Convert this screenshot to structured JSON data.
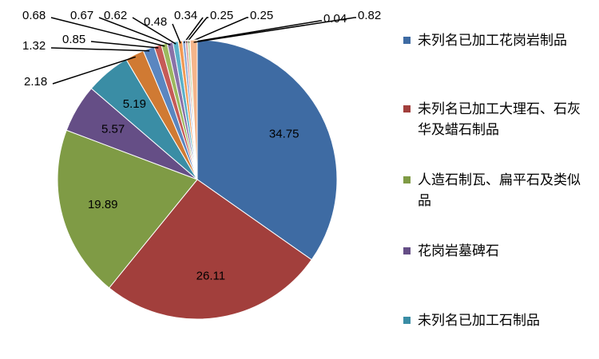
{
  "chart_data": {
    "type": "pie",
    "categories": [
      "未列名已加工花岗岩制品",
      "未列名已加工大理石、石灰华及蜡石制品",
      "人造石制瓦、扁平石及类似品",
      "花岗岩墓碑石",
      "未列名已加工石制品",
      null,
      null,
      null,
      null,
      null,
      null,
      null,
      null,
      null,
      null,
      null,
      null
    ],
    "values": [
      34.75,
      26.11,
      19.89,
      5.57,
      5.19,
      2.18,
      1.32,
      0.85,
      0.68,
      0.67,
      0.62,
      0.48,
      0.34,
      0.25,
      0.25,
      0.04,
      0.82
    ],
    "colors": [
      "#3E6BA3",
      "#A23F3C",
      "#7F9B45",
      "#654E86",
      "#3A8DA5",
      "#D07A33",
      "#5A86C0",
      "#C65A57",
      "#9CB85E",
      "#8A72A8",
      "#5BB1C9",
      "#F29A55",
      "#8FAAD6",
      "#D99593",
      "#BDD19A",
      "#B3A4C9",
      "#F5B58A"
    ],
    "legend": "right"
  }
}
